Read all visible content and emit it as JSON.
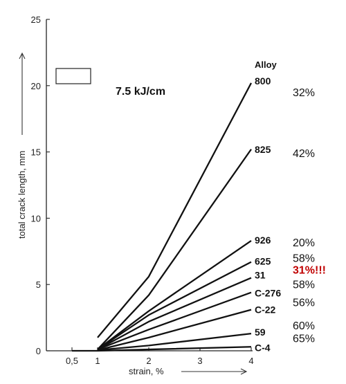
{
  "chart_data": {
    "type": "line",
    "xlabel": "strain, %",
    "ylabel": "total crack length, mm",
    "xlim": [
      0,
      4
    ],
    "ylim": [
      0,
      25
    ],
    "x_ticks": [
      {
        "value": 0.5,
        "label": "0,5"
      },
      {
        "value": 1,
        "label": "1"
      },
      {
        "value": 2,
        "label": "2"
      },
      {
        "value": 3,
        "label": "3"
      },
      {
        "value": 4,
        "label": "4"
      }
    ],
    "y_ticks": [
      {
        "value": 0,
        "label": "0"
      },
      {
        "value": 5,
        "label": "5"
      },
      {
        "value": 10,
        "label": "10"
      },
      {
        "value": 15,
        "label": "15"
      },
      {
        "value": 20,
        "label": "20"
      },
      {
        "value": 25,
        "label": "25"
      }
    ],
    "annotation": "7.5 kJ/cm",
    "legend_title": "Alloy",
    "baseline": {
      "x": [
        0.5,
        1
      ],
      "y": [
        0,
        0
      ]
    },
    "series": [
      {
        "name": "800",
        "percent": "32%",
        "highlight": false,
        "x": [
          1,
          2,
          4
        ],
        "y": [
          1.0,
          5.6,
          20.2
        ]
      },
      {
        "name": "825",
        "percent": "42%",
        "highlight": false,
        "x": [
          1,
          2,
          4
        ],
        "y": [
          0.1,
          4.2,
          15.2
        ]
      },
      {
        "name": "926",
        "percent": "20%",
        "highlight": false,
        "x": [
          1,
          2,
          4
        ],
        "y": [
          0.1,
          3.0,
          8.3
        ]
      },
      {
        "name": "625",
        "percent": "58%",
        "highlight": false,
        "x": [
          1,
          2,
          4
        ],
        "y": [
          0.1,
          2.7,
          6.7
        ]
      },
      {
        "name": "31",
        "percent": "31%!!!",
        "highlight": true,
        "x": [
          1,
          2,
          4
        ],
        "y": [
          0.1,
          2.2,
          5.5
        ]
      },
      {
        "name": "C-276",
        "percent": "58%",
        "highlight": false,
        "x": [
          1,
          2,
          4
        ],
        "y": [
          0.1,
          1.6,
          4.4
        ]
      },
      {
        "name": "C-22",
        "percent": "56%",
        "highlight": false,
        "x": [
          1,
          2,
          4
        ],
        "y": [
          0.05,
          1.0,
          3.1
        ]
      },
      {
        "name": "59",
        "percent": "60%",
        "highlight": false,
        "x": [
          1,
          2,
          4
        ],
        "y": [
          0.05,
          0.4,
          1.3
        ]
      },
      {
        "name": "C-4",
        "percent": "65%",
        "highlight": false,
        "x": [
          1,
          2,
          4
        ],
        "y": [
          0.0,
          0.1,
          0.3
        ]
      }
    ],
    "grid": false
  }
}
